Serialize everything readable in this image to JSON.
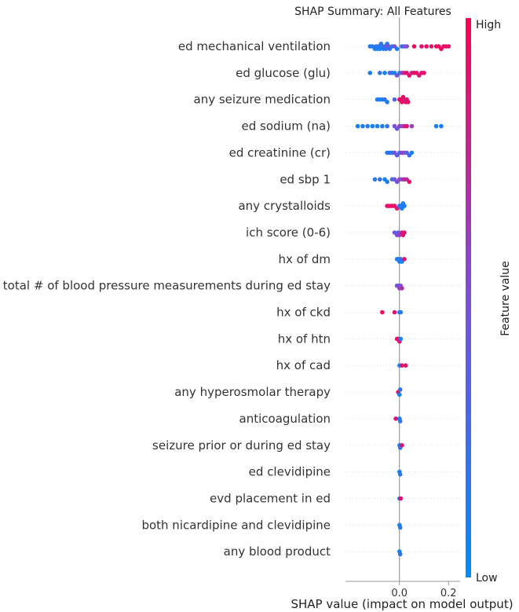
{
  "chart_data": {
    "type": "scatter",
    "title": "SHAP Summary: All Features",
    "xlabel": "SHAP value (impact on model output)",
    "xlim": [
      -0.22,
      0.26
    ],
    "xticks": [
      {
        "value": 0.0,
        "label": "0.0"
      },
      {
        "value": 0.2,
        "label": "0.2"
      }
    ],
    "colorbar": {
      "label": "Feature value",
      "high_label": "High",
      "low_label": "Low"
    },
    "colors": {
      "low": "#008bfb",
      "mid": "#7c4fd8",
      "high": "#ff0052",
      "axis": "#999999",
      "zero_line": "#888888"
    },
    "features": [
      {
        "name": "ed mechanical ventilation",
        "points": [
          [
            -0.12,
            0.1
          ],
          [
            -0.11,
            0.15
          ],
          [
            -0.1,
            0.1
          ],
          [
            -0.095,
            0.2
          ],
          [
            -0.09,
            0.1
          ],
          [
            -0.085,
            0.15
          ],
          [
            -0.08,
            0.1
          ],
          [
            -0.075,
            0.2
          ],
          [
            -0.07,
            0.15
          ],
          [
            -0.065,
            0.1
          ],
          [
            -0.06,
            0.3
          ],
          [
            -0.055,
            0.2
          ],
          [
            -0.05,
            0.1
          ],
          [
            -0.045,
            0.5
          ],
          [
            -0.04,
            0.2
          ],
          [
            -0.03,
            0.1
          ],
          [
            -0.02,
            0.5
          ],
          [
            -0.01,
            0.1
          ],
          [
            0.01,
            0.15
          ],
          [
            0.02,
            0.5
          ],
          [
            0.03,
            0.5
          ],
          [
            0.06,
            0.95
          ],
          [
            0.09,
            0.9
          ],
          [
            0.11,
            0.95
          ],
          [
            0.13,
            0.9
          ],
          [
            0.15,
            0.95
          ],
          [
            0.16,
            0.9
          ],
          [
            0.17,
            0.95
          ],
          [
            0.18,
            0.9
          ],
          [
            0.19,
            0.95
          ],
          [
            0.2,
            0.9
          ]
        ]
      },
      {
        "name": "ed glucose (glu)",
        "points": [
          [
            -0.12,
            0.1
          ],
          [
            -0.08,
            0.2
          ],
          [
            -0.06,
            0.1
          ],
          [
            -0.04,
            0.3
          ],
          [
            -0.03,
            0.2
          ],
          [
            -0.02,
            0.1
          ],
          [
            -0.01,
            0.5
          ],
          [
            0.0,
            0.2
          ],
          [
            0.01,
            0.6
          ],
          [
            0.02,
            0.8
          ],
          [
            0.03,
            0.9
          ],
          [
            0.04,
            0.9
          ],
          [
            0.05,
            0.8
          ],
          [
            0.06,
            0.95
          ],
          [
            0.07,
            0.9
          ],
          [
            0.08,
            0.85
          ],
          [
            0.09,
            0.9
          ],
          [
            0.1,
            0.9
          ]
        ]
      },
      {
        "name": "any seizure medication",
        "points": [
          [
            -0.09,
            0.1
          ],
          [
            -0.08,
            0.15
          ],
          [
            -0.07,
            0.1
          ],
          [
            -0.06,
            0.2
          ],
          [
            -0.05,
            0.1
          ],
          [
            -0.02,
            0.3
          ],
          [
            0.0,
            0.9
          ],
          [
            0.005,
            0.95
          ],
          [
            0.01,
            0.9
          ],
          [
            0.015,
            0.95
          ],
          [
            0.02,
            0.9
          ],
          [
            0.025,
            0.85
          ],
          [
            0.03,
            0.9
          ],
          [
            0.035,
            0.95
          ]
        ]
      },
      {
        "name": "ed sodium (na)",
        "points": [
          [
            -0.17,
            0.1
          ],
          [
            -0.15,
            0.1
          ],
          [
            -0.13,
            0.15
          ],
          [
            -0.11,
            0.1
          ],
          [
            -0.09,
            0.15
          ],
          [
            -0.07,
            0.1
          ],
          [
            -0.05,
            0.2
          ],
          [
            -0.02,
            0.5
          ],
          [
            -0.01,
            0.4
          ],
          [
            0.0,
            0.6
          ],
          [
            0.01,
            0.5
          ],
          [
            0.02,
            0.8
          ],
          [
            0.03,
            0.9
          ],
          [
            0.05,
            0.6
          ],
          [
            0.15,
            0.1
          ],
          [
            0.17,
            0.1
          ]
        ]
      },
      {
        "name": "ed creatinine (cr)",
        "points": [
          [
            -0.05,
            0.1
          ],
          [
            -0.04,
            0.2
          ],
          [
            -0.03,
            0.1
          ],
          [
            -0.02,
            0.5
          ],
          [
            -0.01,
            0.4
          ],
          [
            0.0,
            0.3
          ],
          [
            0.01,
            0.6
          ],
          [
            0.02,
            0.5
          ],
          [
            0.03,
            0.4
          ],
          [
            0.04,
            0.2
          ],
          [
            0.05,
            0.1
          ]
        ]
      },
      {
        "name": "ed sbp 1",
        "points": [
          [
            -0.1,
            0.1
          ],
          [
            -0.08,
            0.2
          ],
          [
            -0.06,
            0.1
          ],
          [
            -0.05,
            0.1
          ],
          [
            -0.03,
            0.3
          ],
          [
            -0.02,
            0.4
          ],
          [
            -0.01,
            0.5
          ],
          [
            0.0,
            0.6
          ],
          [
            0.01,
            0.5
          ],
          [
            0.02,
            0.8
          ],
          [
            0.03,
            0.7
          ],
          [
            0.04,
            0.9
          ]
        ]
      },
      {
        "name": "any crystalloids",
        "points": [
          [
            -0.05,
            0.9
          ],
          [
            -0.04,
            0.95
          ],
          [
            -0.03,
            0.9
          ],
          [
            -0.02,
            0.95
          ],
          [
            -0.01,
            0.85
          ],
          [
            0.0,
            0.2
          ],
          [
            0.005,
            0.15
          ],
          [
            0.01,
            0.1
          ],
          [
            0.015,
            0.15
          ],
          [
            0.02,
            0.1
          ]
        ]
      },
      {
        "name": "ich score (0-6)",
        "points": [
          [
            -0.02,
            0.4
          ],
          [
            -0.01,
            0.5
          ],
          [
            -0.005,
            0.4
          ],
          [
            0.0,
            0.6
          ],
          [
            0.01,
            0.8
          ],
          [
            0.015,
            0.9
          ],
          [
            0.02,
            0.9
          ]
        ]
      },
      {
        "name": "hx of dm",
        "points": [
          [
            -0.01,
            0.1
          ],
          [
            -0.005,
            0.15
          ],
          [
            0.0,
            0.1
          ],
          [
            0.005,
            0.2
          ],
          [
            0.01,
            0.1
          ],
          [
            0.02,
            0.9
          ]
        ]
      },
      {
        "name": "total # of blood pressure measurements during ed stay",
        "points": [
          [
            -0.01,
            0.4
          ],
          [
            -0.005,
            0.5
          ],
          [
            0.0,
            0.6
          ],
          [
            0.005,
            0.5
          ],
          [
            0.01,
            0.7
          ]
        ]
      },
      {
        "name": "hx of ckd",
        "points": [
          [
            -0.07,
            0.95
          ],
          [
            -0.02,
            0.9
          ],
          [
            0.0,
            0.1
          ],
          [
            0.005,
            0.15
          ]
        ]
      },
      {
        "name": "hx of htn",
        "points": [
          [
            -0.01,
            0.9
          ],
          [
            -0.005,
            0.95
          ],
          [
            0.0,
            0.9
          ],
          [
            0.005,
            0.1
          ]
        ]
      },
      {
        "name": "hx of cad",
        "points": [
          [
            0.0,
            0.1
          ],
          [
            0.01,
            0.9
          ],
          [
            0.025,
            0.9
          ]
        ]
      },
      {
        "name": "any hyperosmolar therapy",
        "points": [
          [
            -0.005,
            0.9
          ],
          [
            0.0,
            0.1
          ],
          [
            0.003,
            0.15
          ]
        ]
      },
      {
        "name": "anticoagulation",
        "points": [
          [
            -0.015,
            0.9
          ],
          [
            0.0,
            0.1
          ],
          [
            0.003,
            0.15
          ]
        ]
      },
      {
        "name": "seizure prior or during ed stay",
        "points": [
          [
            0.0,
            0.1
          ],
          [
            0.003,
            0.15
          ],
          [
            0.01,
            0.9
          ]
        ]
      },
      {
        "name": "ed clevidipine",
        "points": [
          [
            0.0,
            0.1
          ],
          [
            0.003,
            0.15
          ]
        ]
      },
      {
        "name": "evd placement in ed",
        "points": [
          [
            0.0,
            0.1
          ],
          [
            0.005,
            0.9
          ]
        ]
      },
      {
        "name": "both nicardipine and clevidipine",
        "points": [
          [
            0.0,
            0.1
          ],
          [
            0.003,
            0.15
          ]
        ]
      },
      {
        "name": "any blood product",
        "points": [
          [
            0.0,
            0.1
          ],
          [
            0.003,
            0.15
          ]
        ]
      }
    ]
  }
}
